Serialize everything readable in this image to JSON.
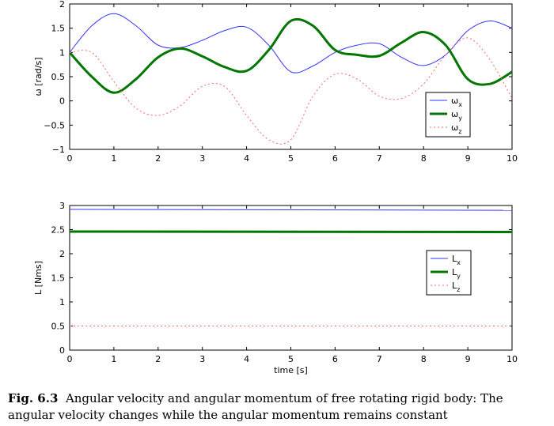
{
  "caption": {
    "label": "Fig. 6.3",
    "text": "Angular velocity and angular momentum of free rotating rigid body: The angular velocity changes while the angular momentum remains constant"
  },
  "chart_data": [
    {
      "type": "line",
      "ylabel": "ω [rad/s]",
      "xlabel": "",
      "xlim": [
        0,
        10
      ],
      "ylim": [
        -1,
        2
      ],
      "xticks": [
        "0",
        "1",
        "2",
        "3",
        "4",
        "5",
        "6",
        "7",
        "8",
        "9",
        "10"
      ],
      "yticks": [
        "−1",
        "−0.5",
        "0",
        "0.5",
        "1",
        "1.5",
        "2"
      ],
      "legend_position": "lower-right",
      "x": [
        0,
        0.5,
        1,
        1.5,
        2,
        2.5,
        3,
        3.5,
        4,
        4.5,
        5,
        5.5,
        6,
        6.5,
        7,
        7.5,
        8,
        8.5,
        9,
        9.5,
        10
      ],
      "series": [
        {
          "name": "ω_x",
          "base": "ω",
          "sub": "x",
          "color": "#3333ff",
          "width": 1,
          "dash": "",
          "values": [
            1.0,
            1.55,
            1.8,
            1.55,
            1.15,
            1.1,
            1.25,
            1.45,
            1.52,
            1.15,
            0.6,
            0.72,
            1.0,
            1.15,
            1.18,
            0.9,
            0.73,
            0.95,
            1.45,
            1.65,
            1.5
          ]
        },
        {
          "name": "ω_y",
          "base": "ω",
          "sub": "y",
          "color": "#007700",
          "width": 3,
          "dash": "",
          "values": [
            1.0,
            0.5,
            0.17,
            0.45,
            0.9,
            1.08,
            0.92,
            0.7,
            0.62,
            1.05,
            1.65,
            1.55,
            1.05,
            0.95,
            0.93,
            1.2,
            1.42,
            1.15,
            0.45,
            0.35,
            0.6
          ]
        },
        {
          "name": "ω_z",
          "base": "ω",
          "sub": "z",
          "color": "#ff6666",
          "width": 1,
          "dash": "2,3",
          "values": [
            1.0,
            1.0,
            0.4,
            -0.15,
            -0.3,
            -0.1,
            0.3,
            0.3,
            -0.3,
            -0.8,
            -0.8,
            0.1,
            0.55,
            0.45,
            0.1,
            0.05,
            0.35,
            0.95,
            1.3,
            0.85,
            0.05
          ]
        }
      ]
    },
    {
      "type": "line",
      "ylabel": "L [Nms]",
      "xlabel": "time [s]",
      "xlim": [
        0,
        10
      ],
      "ylim": [
        0,
        3
      ],
      "xticks": [
        "0",
        "1",
        "2",
        "3",
        "4",
        "5",
        "6",
        "7",
        "8",
        "9",
        "10"
      ],
      "yticks": [
        "0",
        "0.5",
        "1",
        "1.5",
        "2",
        "2.5",
        "3"
      ],
      "legend_position": "center-right",
      "x": [
        0,
        10
      ],
      "series": [
        {
          "name": "L_x",
          "base": "L",
          "sub": "x",
          "color": "#3333ff",
          "width": 1,
          "dash": "",
          "values": [
            2.92,
            2.9
          ]
        },
        {
          "name": "L_y",
          "base": "L",
          "sub": "y",
          "color": "#007700",
          "width": 3,
          "dash": "",
          "values": [
            2.46,
            2.45
          ]
        },
        {
          "name": "L_z",
          "base": "L",
          "sub": "z",
          "color": "#ff6666",
          "width": 1,
          "dash": "2,3",
          "values": [
            0.5,
            0.5
          ]
        }
      ]
    }
  ]
}
